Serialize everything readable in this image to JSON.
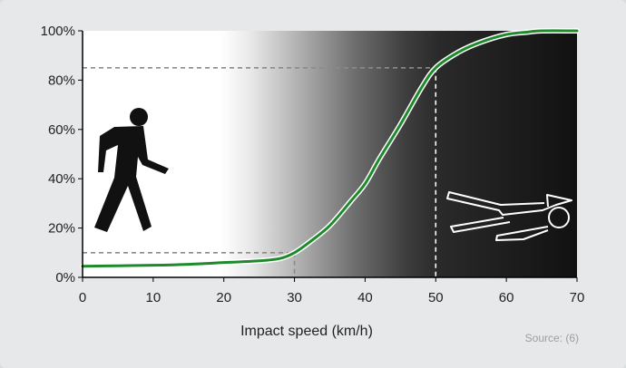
{
  "chart_data": {
    "type": "line",
    "xlabel": "Impact speed (km/h)",
    "ylabel": "",
    "xlim": [
      0,
      70
    ],
    "ylim": [
      0,
      100
    ],
    "x_ticks": [
      "0",
      "10",
      "20",
      "30",
      "40",
      "50",
      "60",
      "70"
    ],
    "y_ticks": [
      "0%",
      "20%",
      "40%",
      "60%",
      "80%",
      "100%"
    ],
    "series": [
      {
        "name": "",
        "color": "#1e8a2c",
        "x": [
          0,
          5,
          10,
          15,
          20,
          25,
          28,
          30,
          32,
          35,
          38,
          40,
          42,
          45,
          48,
          50,
          53,
          56,
          60,
          63,
          65,
          70
        ],
        "y": [
          4.5,
          4.7,
          4.9,
          5.3,
          6.0,
          6.7,
          7.7,
          10,
          14,
          21,
          31,
          38,
          48,
          62,
          77,
          85,
          91,
          95,
          98.5,
          99.5,
          100,
          100
        ]
      }
    ],
    "reference_lines": [
      {
        "x": 30,
        "y": 10
      },
      {
        "x": 50,
        "y": 85
      }
    ],
    "grid": false,
    "background": "gradient from light grey (left) to black (right)",
    "icons": [
      "walking-pedestrian-icon",
      "lying-body-outline-icon"
    ]
  },
  "source_note": "Source: (6)"
}
